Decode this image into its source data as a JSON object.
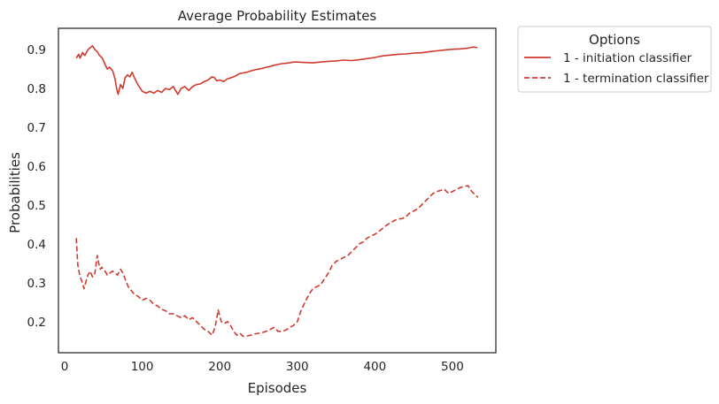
{
  "chart_data": {
    "type": "line",
    "title": "Average Probability Estimates",
    "xlabel": "Episodes",
    "ylabel": "Probabilities",
    "xlim": [
      -8,
      556
    ],
    "ylim": [
      0.12,
      0.955
    ],
    "xticks": [
      0,
      100,
      200,
      300,
      400,
      500
    ],
    "yticks": [
      0.2,
      0.3,
      0.4,
      0.5,
      0.6,
      0.7,
      0.8,
      0.9
    ],
    "grid": false,
    "legend": {
      "title": "Options",
      "placement": "outside-top-right"
    },
    "color": "#d03a2e",
    "series": [
      {
        "name": "1 - initiation classifier",
        "style": "solid",
        "points": [
          [
            15,
            0.878
          ],
          [
            18,
            0.888
          ],
          [
            20,
            0.878
          ],
          [
            23,
            0.893
          ],
          [
            26,
            0.885
          ],
          [
            30,
            0.9
          ],
          [
            33,
            0.905
          ],
          [
            36,
            0.91
          ],
          [
            39,
            0.9
          ],
          [
            42,
            0.895
          ],
          [
            45,
            0.885
          ],
          [
            48,
            0.88
          ],
          [
            50,
            0.872
          ],
          [
            52,
            0.862
          ],
          [
            55,
            0.85
          ],
          [
            58,
            0.855
          ],
          [
            62,
            0.845
          ],
          [
            65,
            0.825
          ],
          [
            67,
            0.8
          ],
          [
            69,
            0.785
          ],
          [
            72,
            0.81
          ],
          [
            75,
            0.8
          ],
          [
            78,
            0.828
          ],
          [
            81,
            0.835
          ],
          [
            84,
            0.83
          ],
          [
            87,
            0.842
          ],
          [
            90,
            0.828
          ],
          [
            93,
            0.815
          ],
          [
            96,
            0.805
          ],
          [
            100,
            0.793
          ],
          [
            105,
            0.788
          ],
          [
            110,
            0.793
          ],
          [
            115,
            0.788
          ],
          [
            120,
            0.795
          ],
          [
            125,
            0.79
          ],
          [
            130,
            0.8
          ],
          [
            135,
            0.797
          ],
          [
            140,
            0.805
          ],
          [
            143,
            0.795
          ],
          [
            146,
            0.785
          ],
          [
            150,
            0.8
          ],
          [
            155,
            0.805
          ],
          [
            160,
            0.795
          ],
          [
            165,
            0.805
          ],
          [
            170,
            0.81
          ],
          [
            175,
            0.812
          ],
          [
            180,
            0.818
          ],
          [
            185,
            0.822
          ],
          [
            190,
            0.83
          ],
          [
            193,
            0.828
          ],
          [
            196,
            0.82
          ],
          [
            200,
            0.822
          ],
          [
            205,
            0.818
          ],
          [
            210,
            0.825
          ],
          [
            215,
            0.828
          ],
          [
            220,
            0.832
          ],
          [
            225,
            0.838
          ],
          [
            230,
            0.84
          ],
          [
            235,
            0.842
          ],
          [
            240,
            0.845
          ],
          [
            245,
            0.848
          ],
          [
            250,
            0.85
          ],
          [
            255,
            0.852
          ],
          [
            260,
            0.855
          ],
          [
            265,
            0.857
          ],
          [
            270,
            0.86
          ],
          [
            275,
            0.862
          ],
          [
            280,
            0.864
          ],
          [
            285,
            0.865
          ],
          [
            290,
            0.866
          ],
          [
            295,
            0.868
          ],
          [
            300,
            0.868
          ],
          [
            310,
            0.867
          ],
          [
            320,
            0.866
          ],
          [
            330,
            0.868
          ],
          [
            340,
            0.87
          ],
          [
            350,
            0.871
          ],
          [
            360,
            0.873
          ],
          [
            370,
            0.872
          ],
          [
            380,
            0.874
          ],
          [
            390,
            0.877
          ],
          [
            400,
            0.88
          ],
          [
            410,
            0.884
          ],
          [
            420,
            0.886
          ],
          [
            430,
            0.888
          ],
          [
            440,
            0.889
          ],
          [
            450,
            0.891
          ],
          [
            460,
            0.892
          ],
          [
            470,
            0.895
          ],
          [
            480,
            0.897
          ],
          [
            490,
            0.899
          ],
          [
            500,
            0.901
          ],
          [
            510,
            0.902
          ],
          [
            520,
            0.904
          ],
          [
            527,
            0.907
          ],
          [
            532,
            0.905
          ]
        ]
      },
      {
        "name": "1 - termination classifier",
        "style": "dashed",
        "points": [
          [
            15,
            0.415
          ],
          [
            16,
            0.38
          ],
          [
            17,
            0.345
          ],
          [
            19,
            0.325
          ],
          [
            21,
            0.31
          ],
          [
            23,
            0.3
          ],
          [
            25,
            0.285
          ],
          [
            27,
            0.3
          ],
          [
            30,
            0.32
          ],
          [
            33,
            0.33
          ],
          [
            36,
            0.315
          ],
          [
            39,
            0.325
          ],
          [
            42,
            0.37
          ],
          [
            44,
            0.35
          ],
          [
            46,
            0.335
          ],
          [
            48,
            0.34
          ],
          [
            52,
            0.33
          ],
          [
            55,
            0.32
          ],
          [
            58,
            0.325
          ],
          [
            62,
            0.33
          ],
          [
            65,
            0.325
          ],
          [
            68,
            0.32
          ],
          [
            72,
            0.335
          ],
          [
            75,
            0.325
          ],
          [
            78,
            0.31
          ],
          [
            82,
            0.29
          ],
          [
            86,
            0.28
          ],
          [
            90,
            0.27
          ],
          [
            95,
            0.265
          ],
          [
            100,
            0.255
          ],
          [
            105,
            0.26
          ],
          [
            110,
            0.255
          ],
          [
            115,
            0.245
          ],
          [
            120,
            0.24
          ],
          [
            125,
            0.232
          ],
          [
            130,
            0.228
          ],
          [
            135,
            0.22
          ],
          [
            140,
            0.22
          ],
          [
            145,
            0.215
          ],
          [
            150,
            0.21
          ],
          [
            155,
            0.215
          ],
          [
            160,
            0.205
          ],
          [
            165,
            0.21
          ],
          [
            170,
            0.2
          ],
          [
            175,
            0.19
          ],
          [
            180,
            0.18
          ],
          [
            185,
            0.175
          ],
          [
            190,
            0.165
          ],
          [
            194,
            0.185
          ],
          [
            198,
            0.23
          ],
          [
            202,
            0.2
          ],
          [
            206,
            0.195
          ],
          [
            210,
            0.2
          ],
          [
            214,
            0.19
          ],
          [
            218,
            0.175
          ],
          [
            222,
            0.165
          ],
          [
            226,
            0.17
          ],
          [
            230,
            0.162
          ],
          [
            235,
            0.163
          ],
          [
            240,
            0.165
          ],
          [
            245,
            0.168
          ],
          [
            250,
            0.17
          ],
          [
            255,
            0.172
          ],
          [
            260,
            0.175
          ],
          [
            265,
            0.18
          ],
          [
            270,
            0.185
          ],
          [
            275,
            0.175
          ],
          [
            280,
            0.175
          ],
          [
            285,
            0.178
          ],
          [
            290,
            0.185
          ],
          [
            295,
            0.19
          ],
          [
            300,
            0.2
          ],
          [
            305,
            0.23
          ],
          [
            310,
            0.25
          ],
          [
            315,
            0.27
          ],
          [
            320,
            0.285
          ],
          [
            325,
            0.29
          ],
          [
            330,
            0.295
          ],
          [
            335,
            0.31
          ],
          [
            340,
            0.325
          ],
          [
            345,
            0.345
          ],
          [
            350,
            0.355
          ],
          [
            355,
            0.36
          ],
          [
            360,
            0.365
          ],
          [
            365,
            0.37
          ],
          [
            370,
            0.38
          ],
          [
            375,
            0.39
          ],
          [
            380,
            0.4
          ],
          [
            385,
            0.405
          ],
          [
            390,
            0.415
          ],
          [
            395,
            0.42
          ],
          [
            400,
            0.425
          ],
          [
            405,
            0.432
          ],
          [
            410,
            0.44
          ],
          [
            415,
            0.448
          ],
          [
            420,
            0.455
          ],
          [
            425,
            0.46
          ],
          [
            430,
            0.465
          ],
          [
            435,
            0.465
          ],
          [
            440,
            0.47
          ],
          [
            445,
            0.48
          ],
          [
            450,
            0.485
          ],
          [
            455,
            0.49
          ],
          [
            460,
            0.5
          ],
          [
            465,
            0.51
          ],
          [
            470,
            0.52
          ],
          [
            475,
            0.53
          ],
          [
            480,
            0.535
          ],
          [
            485,
            0.538
          ],
          [
            490,
            0.54
          ],
          [
            495,
            0.53
          ],
          [
            500,
            0.535
          ],
          [
            505,
            0.54
          ],
          [
            510,
            0.545
          ],
          [
            515,
            0.548
          ],
          [
            520,
            0.55
          ],
          [
            525,
            0.535
          ],
          [
            530,
            0.525
          ],
          [
            533,
            0.52
          ]
        ]
      }
    ]
  }
}
